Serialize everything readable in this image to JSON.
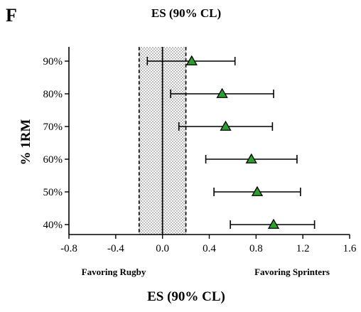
{
  "panel_label": "F",
  "chart_data": {
    "type": "scatter",
    "title": "ES (90% CL)",
    "xlabel": "ES (90% CL)",
    "ylabel": "% 1RM",
    "xlim": [
      -0.8,
      1.6
    ],
    "xticks": [
      "-0.8",
      "-0.4",
      "0.0",
      "0.4",
      "0.8",
      "1.2",
      "1.6"
    ],
    "categories": [
      "90%",
      "80%",
      "70%",
      "60%",
      "50%",
      "40%"
    ],
    "points": [
      {
        "category": "90%",
        "es": 0.25,
        "lower": -0.13,
        "upper": 0.62
      },
      {
        "category": "80%",
        "es": 0.51,
        "lower": 0.07,
        "upper": 0.95
      },
      {
        "category": "70%",
        "es": 0.54,
        "lower": 0.14,
        "upper": 0.94
      },
      {
        "category": "60%",
        "es": 0.76,
        "lower": 0.37,
        "upper": 1.15
      },
      {
        "category": "50%",
        "es": 0.81,
        "lower": 0.44,
        "upper": 1.18
      },
      {
        "category": "40%",
        "es": 0.95,
        "lower": 0.58,
        "upper": 1.3
      }
    ],
    "trivial_zone": [
      -0.2,
      0.2
    ],
    "annotations": {
      "left": "Favoring Rugby",
      "right": "Favoring Sprinters"
    },
    "marker_color": "#2ca02c",
    "marker_shape": "triangle"
  }
}
